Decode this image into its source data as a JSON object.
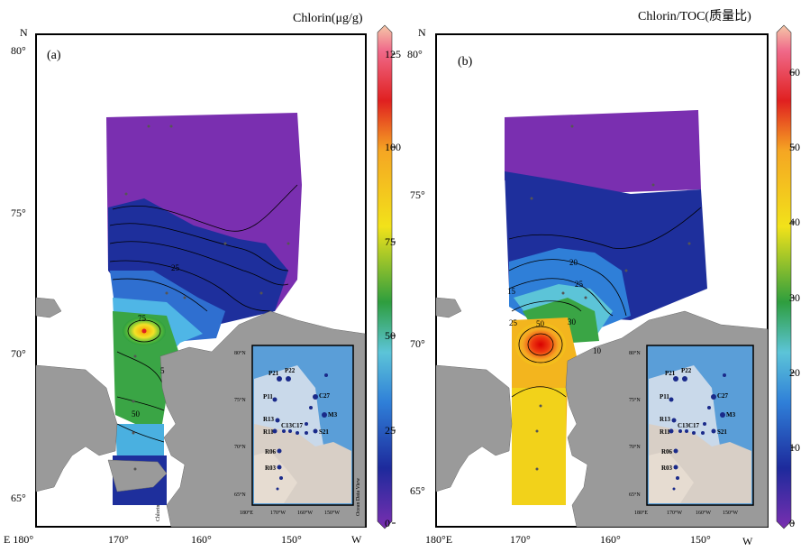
{
  "panels": [
    {
      "letter": "(a)",
      "title": "Chlorin(μg/g)",
      "north": "N",
      "west": "W",
      "east": "E 180°",
      "lat_labels": [
        "80°",
        "75°",
        "70°",
        "65°"
      ],
      "lon_labels": [
        "170°",
        "160°",
        "150°"
      ],
      "colorbar_ticks": [
        "125",
        "100",
        "75",
        "50",
        "25",
        "0"
      ],
      "contour_labels": [
        "75",
        "50",
        "25",
        "5"
      ],
      "side_text": "Chlorin"
    },
    {
      "letter": "(b)",
      "title": "Chlorin/TOC(质量比)",
      "north": "N",
      "west": "W",
      "east": "180°E",
      "lat_labels": [
        "80°",
        "75°",
        "70°",
        "65°"
      ],
      "lon_labels": [
        "170°",
        "160°",
        "150°"
      ],
      "colorbar_ticks": [
        "60",
        "50",
        "40",
        "30",
        "20",
        "10",
        "0"
      ],
      "contour_labels": [
        "50",
        "30",
        "25",
        "20",
        "15",
        "10",
        "25"
      ],
      "side_text": ""
    }
  ],
  "inset": {
    "lat_labels": [
      "80°N",
      "75°N",
      "70°N",
      "65°N"
    ],
    "lon_labels": [
      "180°E",
      "170°W",
      "160°W",
      "150°W"
    ],
    "stations": [
      "P21",
      "P22",
      "P11",
      "R13",
      "R11",
      "C13",
      "C17",
      "R06",
      "R03",
      "C27",
      "M3",
      "S21"
    ],
    "credit": "Ocean Data View"
  },
  "colors": {
    "land": "#9a9a9a",
    "inset_sea": "#5a9ed8",
    "inset_shelf": "#d8cfc6",
    "station": "#1a2a8a",
    "colormap": [
      "#7a2fb0",
      "#1d2a9c",
      "#3aa0e6",
      "#5cc4d8",
      "#2e9e3e",
      "#f2e21a",
      "#f5a623",
      "#e02020",
      "#f2c6a8"
    ]
  }
}
